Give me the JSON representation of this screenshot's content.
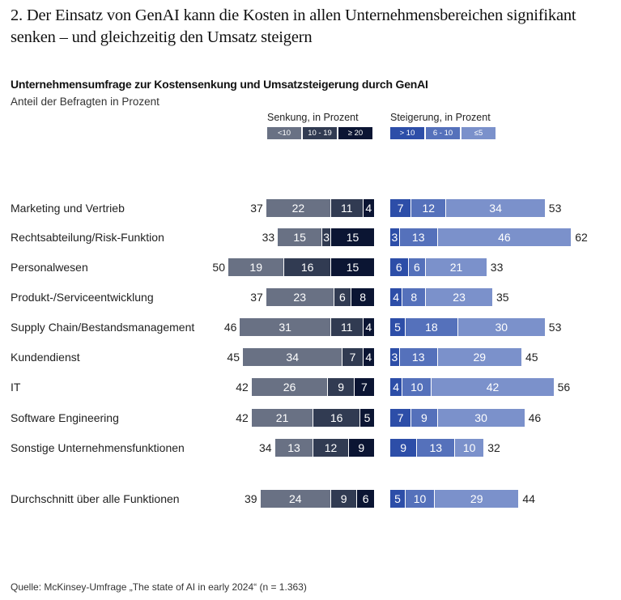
{
  "header": {
    "title": "2. Der Einsatz von GenAI kann die Kosten in allen Unternehmensbereichen signifikant senken – und gleichzeitig den Umsatz steigern"
  },
  "chart_data": {
    "type": "bar",
    "orientation": "horizontal-diverging-stacked",
    "title": "Unternehmensumfrage zur Kostensenkung und Umsatzsteigerung durch GenAI",
    "subtitle": "Anteil der Befragten in Prozent",
    "legend": {
      "senkung": {
        "title": "Senkung, in Prozent",
        "items": [
          {
            "label": "<10",
            "color": "#697184"
          },
          {
            "label": "10 - 19",
            "color": "#313b52"
          },
          {
            "label": "≥ 20",
            "color": "#0b1533"
          }
        ]
      },
      "steigerung": {
        "title": "Steigerung, in Prozent",
        "items": [
          {
            "label": "> 10",
            "color": "#2d4ea8"
          },
          {
            "label": "6 - 10",
            "color": "#5571bb"
          },
          {
            "label": "≤5",
            "color": "#7b91cb"
          }
        ]
      }
    },
    "categories": [
      "Marketing und Vertrieb",
      "Rechtsabteilung/Risk-Funktion",
      "Personalwesen",
      "Produkt-/Serviceentwicklung",
      "Supply Chain/Bestandsmanagement",
      "Kundendienst",
      "IT",
      "Software Engineering",
      "Sonstige Unternehmensfunktionen",
      "Durchschnitt über alle Funktionen"
    ],
    "senkung": {
      "series": [
        {
          "name": "<10",
          "values": [
            22,
            15,
            19,
            23,
            31,
            34,
            26,
            21,
            13,
            24
          ]
        },
        {
          "name": "10 - 19",
          "values": [
            11,
            3,
            16,
            6,
            11,
            7,
            9,
            16,
            12,
            9
          ]
        },
        {
          "name": "≥ 20",
          "values": [
            4,
            15,
            15,
            8,
            4,
            4,
            7,
            5,
            9,
            6
          ]
        }
      ],
      "totals": [
        37,
        33,
        50,
        37,
        46,
        45,
        42,
        42,
        34,
        39
      ]
    },
    "steigerung": {
      "series": [
        {
          "name": "> 10",
          "values": [
            7,
            3,
            6,
            4,
            5,
            3,
            4,
            7,
            9,
            5
          ]
        },
        {
          "name": "6 - 10",
          "values": [
            12,
            13,
            6,
            8,
            18,
            13,
            10,
            9,
            13,
            10
          ]
        },
        {
          "name": "≤5",
          "values": [
            34,
            46,
            21,
            23,
            30,
            29,
            42,
            30,
            10,
            29
          ]
        }
      ],
      "totals": [
        53,
        62,
        33,
        35,
        53,
        45,
        56,
        46,
        32,
        44
      ]
    }
  },
  "footer": {
    "source": "Quelle: McKinsey-Umfrage „The state of AI in early 2024“ (n = 1.363)"
  }
}
